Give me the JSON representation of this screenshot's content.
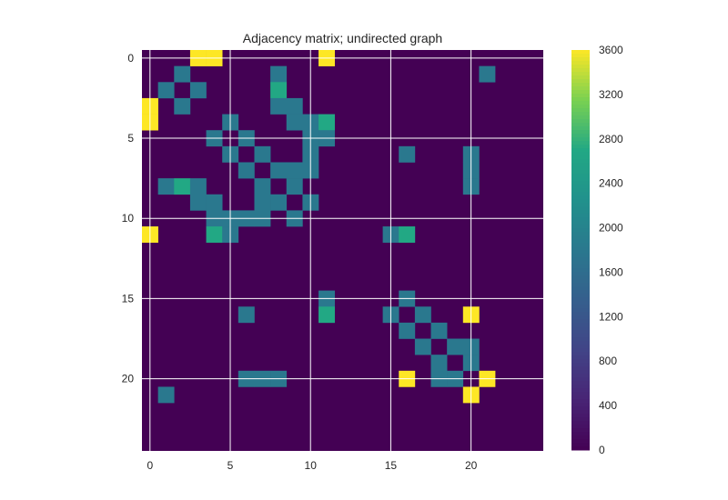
{
  "chart_data": {
    "type": "heatmap",
    "title": "Adjacency matrix; undirected graph",
    "xlabel": "",
    "ylabel": "",
    "n": 25,
    "x_ticks": [
      0,
      5,
      10,
      15,
      20
    ],
    "y_ticks": [
      0,
      5,
      10,
      15,
      20
    ],
    "grid": true,
    "colormap": "viridis",
    "vmin": 0,
    "vmax": 3600,
    "colorbar_ticks": [
      0,
      400,
      800,
      1200,
      1600,
      2000,
      2400,
      2800,
      3200,
      3600
    ],
    "cells": [
      [
        0,
        3,
        3600
      ],
      [
        0,
        4,
        3600
      ],
      [
        0,
        11,
        3600
      ],
      [
        1,
        2,
        1800
      ],
      [
        1,
        8,
        1800
      ],
      [
        1,
        21,
        1800
      ],
      [
        2,
        1,
        1800
      ],
      [
        2,
        3,
        1800
      ],
      [
        2,
        8,
        2700
      ],
      [
        3,
        0,
        3600
      ],
      [
        3,
        2,
        1800
      ],
      [
        3,
        8,
        1800
      ],
      [
        3,
        9,
        1800
      ],
      [
        4,
        0,
        3600
      ],
      [
        4,
        5,
        1800
      ],
      [
        4,
        9,
        1800
      ],
      [
        4,
        10,
        1800
      ],
      [
        4,
        11,
        2700
      ],
      [
        5,
        4,
        1800
      ],
      [
        5,
        6,
        1800
      ],
      [
        5,
        10,
        1800
      ],
      [
        5,
        11,
        1800
      ],
      [
        6,
        5,
        1800
      ],
      [
        6,
        7,
        1800
      ],
      [
        6,
        10,
        1800
      ],
      [
        6,
        16,
        1800
      ],
      [
        6,
        20,
        1800
      ],
      [
        7,
        6,
        1800
      ],
      [
        7,
        8,
        1800
      ],
      [
        7,
        9,
        1800
      ],
      [
        7,
        10,
        1800
      ],
      [
        7,
        20,
        1800
      ],
      [
        8,
        1,
        1800
      ],
      [
        8,
        2,
        2700
      ],
      [
        8,
        3,
        1800
      ],
      [
        8,
        7,
        1800
      ],
      [
        8,
        9,
        1800
      ],
      [
        8,
        20,
        1800
      ],
      [
        9,
        3,
        1800
      ],
      [
        9,
        4,
        1800
      ],
      [
        9,
        7,
        1800
      ],
      [
        9,
        8,
        1800
      ],
      [
        9,
        10,
        1800
      ],
      [
        10,
        4,
        1800
      ],
      [
        10,
        5,
        1800
      ],
      [
        10,
        6,
        1800
      ],
      [
        10,
        7,
        1800
      ],
      [
        10,
        9,
        1800
      ],
      [
        11,
        0,
        3600
      ],
      [
        11,
        4,
        2700
      ],
      [
        11,
        5,
        1800
      ],
      [
        11,
        15,
        1800
      ],
      [
        11,
        16,
        2700
      ],
      [
        15,
        11,
        1800
      ],
      [
        15,
        16,
        1800
      ],
      [
        16,
        6,
        1800
      ],
      [
        16,
        11,
        2700
      ],
      [
        16,
        15,
        1800
      ],
      [
        16,
        17,
        1800
      ],
      [
        16,
        20,
        3600
      ],
      [
        17,
        16,
        1800
      ],
      [
        17,
        18,
        1800
      ],
      [
        18,
        17,
        1800
      ],
      [
        18,
        19,
        1800
      ],
      [
        18,
        20,
        1800
      ],
      [
        19,
        18,
        1800
      ],
      [
        19,
        20,
        1800
      ],
      [
        20,
        6,
        1800
      ],
      [
        20,
        7,
        1800
      ],
      [
        20,
        8,
        1800
      ],
      [
        20,
        16,
        3600
      ],
      [
        20,
        18,
        1800
      ],
      [
        20,
        19,
        1800
      ],
      [
        20,
        21,
        3600
      ],
      [
        21,
        1,
        1800
      ],
      [
        21,
        20,
        3600
      ]
    ]
  }
}
